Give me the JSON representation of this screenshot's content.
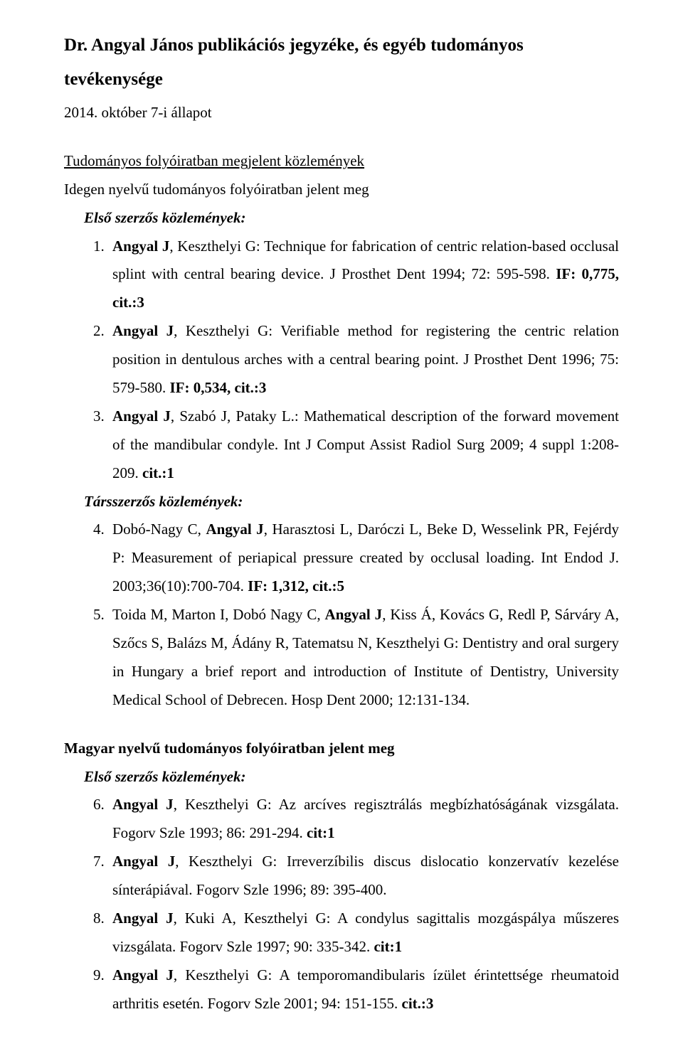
{
  "title": "Dr. Angyal János publikációs jegyzéke, és egyéb tudományos tevékenysége",
  "subtitle": "2014. október 7-i állapot",
  "section1_heading": "Tudományos folyóiratban megjelent közlemények",
  "section1_sub": "Idegen nyelvű tudományos folyóiratban jelent meg",
  "first_author_label": "Első szerzős közlemények:",
  "coauthor_label": "Társszerzős közlemények:",
  "section2_heading": "Magyar nyelvű tudományos folyóiratban jelent meg",
  "items": {
    "1": {
      "lead": "Angyal J",
      "rest1": ", Keszthelyi G: Technique for fabrication of centric relation-based occlusal splint with central bearing device. J Prosthet Dent 1994; 72: 595-598. ",
      "metric": "IF: 0,775, cit.:3"
    },
    "2": {
      "lead": "Angyal J",
      "rest1": ", Keszthelyi G: Verifiable method for registering the centric relation position in dentulous arches with a central bearing point. J Prosthet Dent 1996; 75: 579-580. ",
      "metric": "IF: 0,534, cit.:3"
    },
    "3": {
      "lead": "Angyal J",
      "rest1": ", Szabó J, Pataky L.: Mathematical description of the forward movement of the mandibular condyle. Int J Comput Assist Radiol Surg 2009; 4 suppl 1:208-209. ",
      "metric": "cit.:1"
    },
    "4": {
      "pre": "Dobó-Nagy C, ",
      "lead": "Angyal J",
      "rest1": ", Harasztosi L, Daróczi L, Beke D, Wesselink PR, Fejérdy P: Measurement of periapical pressure created by occlusal loading. Int Endod J. 2003;36(10):700-704. ",
      "metric": "IF: 1,312, cit.:5"
    },
    "5": {
      "pre": "Toida M, Marton I, Dobó Nagy C, ",
      "lead": "Angyal J",
      "rest1": ", Kiss Á, Kovács G, Redl P, Sárváry A, Szőcs S, Balázs M, Ádány R, Tatematsu N, Keszthelyi G: Dentistry and oral surgery in Hungary a brief report and introduction of Institute of Dentistry, University Medical School of Debrecen. Hosp Dent 2000; 12:131-134."
    },
    "6": {
      "lead": "Angyal J",
      "rest1": ", Keszthelyi G: Az arcíves regisztrálás megbízhatóságának vizsgálata. Fogorv Szle 1993; 86: 291-294. ",
      "metric": "cit:1"
    },
    "7": {
      "lead": "Angyal J",
      "rest1": ", Keszthelyi G: Irreverzíbilis discus dislocatio konzervatív kezelése sínterápiával. Fogorv Szle 1996; 89: 395-400."
    },
    "8": {
      "lead": "Angyal J",
      "rest1": ", Kuki A, Keszthelyi G: A condylus sagittalis mozgáspálya műszeres vizsgálata. Fogorv Szle 1997; 90: 335-342. ",
      "metric": "cit:1"
    },
    "9": {
      "lead": "Angyal J",
      "rest1": ", Keszthelyi G: A temporomandibularis ízület érintettsége rheumatoid arthritis esetén. Fogorv Szle 2001; 94: 151-155. ",
      "metric": "cit.:3"
    }
  }
}
